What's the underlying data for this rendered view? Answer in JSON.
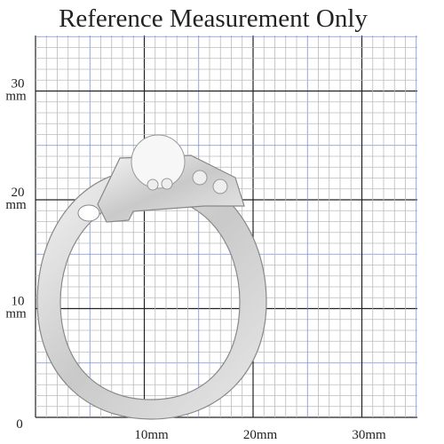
{
  "title": "Reference Measurement Only",
  "y_labels": [
    {
      "number": "30",
      "unit": "mm"
    },
    {
      "number": "20",
      "unit": "mm"
    },
    {
      "number": "10",
      "unit": "mm"
    }
  ],
  "zero": "0",
  "x_labels": [
    "10mm",
    "20mm",
    "30mm"
  ]
}
